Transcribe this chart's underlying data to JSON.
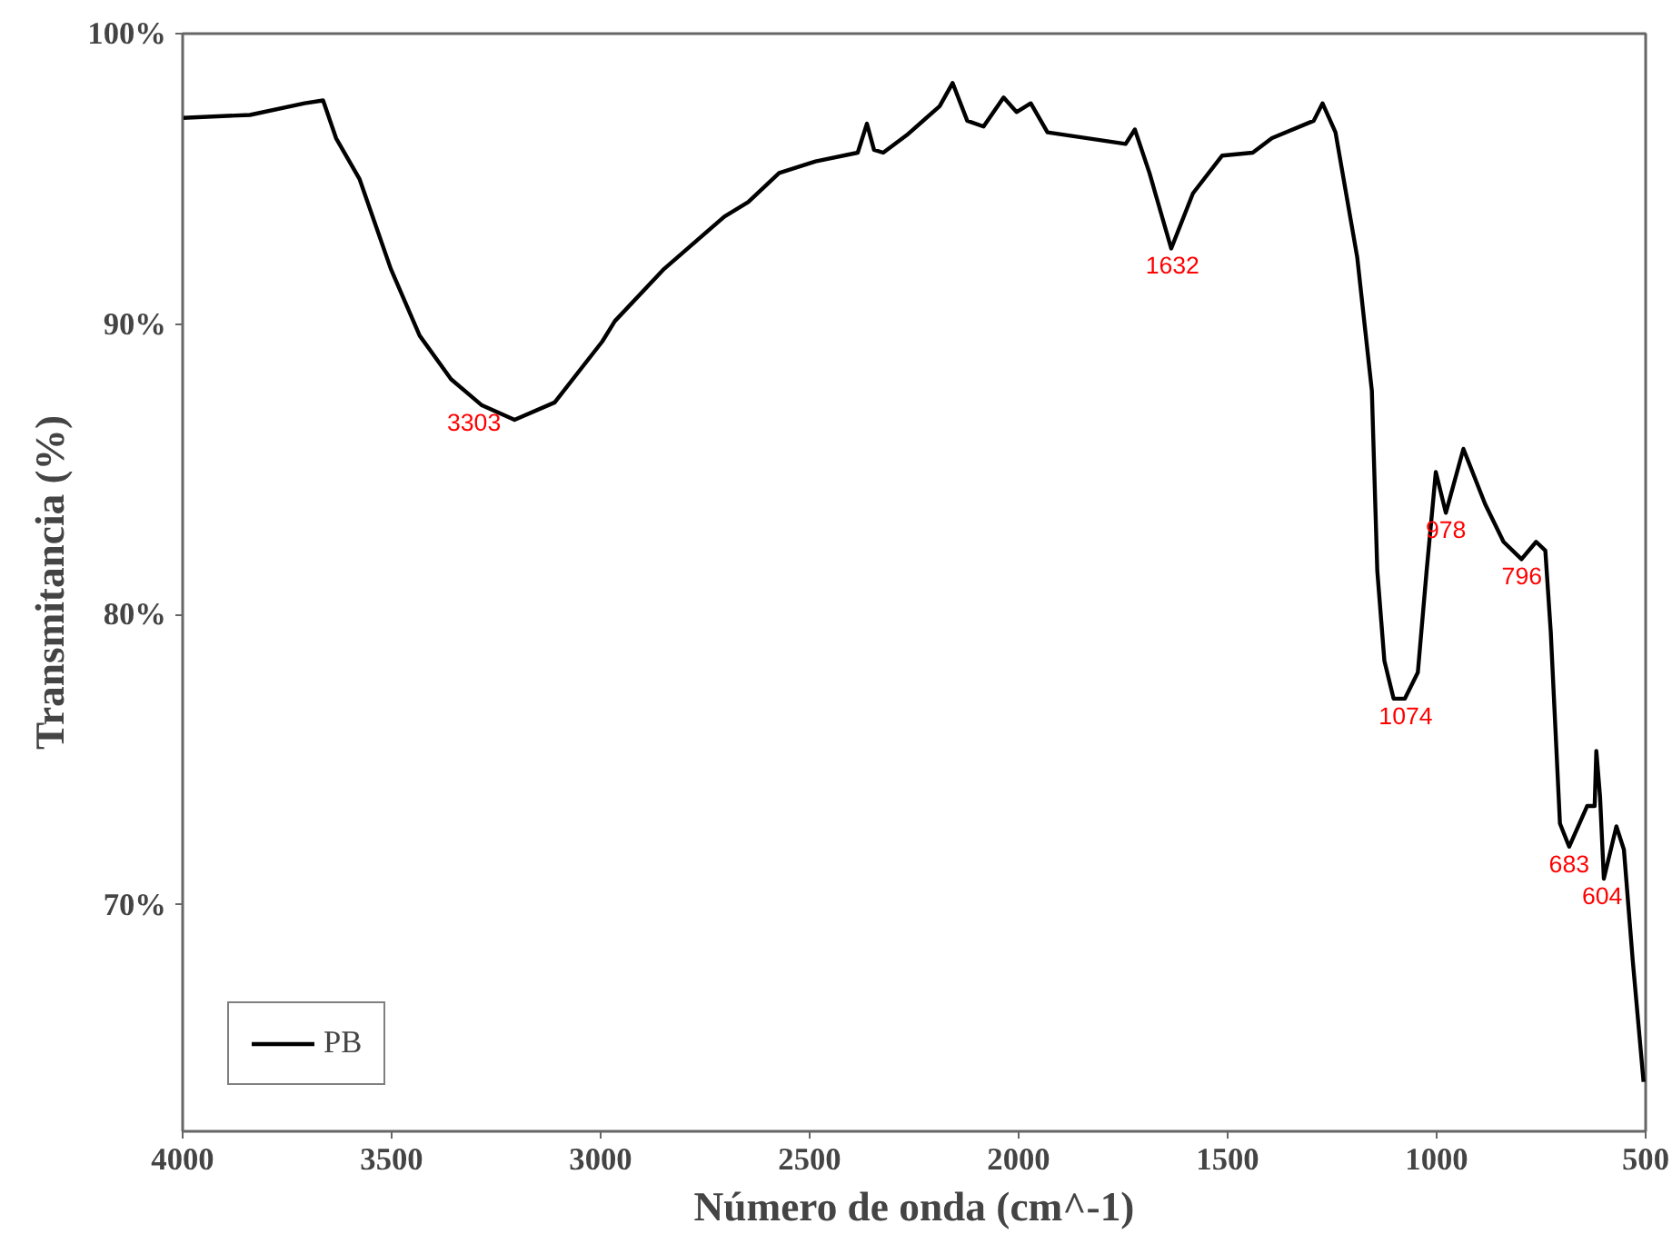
{
  "chart_data": {
    "type": "line",
    "xlabel": "Número de onda (cm^-1)",
    "ylabel": "Transmitancia (%)",
    "x": [
      4000,
      3839,
      3708,
      3664,
      3633,
      3577,
      3502,
      3433,
      3358,
      3284,
      3206,
      3110,
      2996,
      2966,
      2848,
      2704,
      2647,
      2573,
      2486,
      2385,
      2363,
      2346,
      2324,
      2268,
      2189,
      2158,
      2123,
      2084,
      2036,
      2005,
      1971,
      1931,
      1744,
      1722,
      1687,
      1635,
      1583,
      1513,
      1440,
      1394,
      1294,
      1273,
      1242,
      1190,
      1155,
      1142,
      1125,
      1103,
      1076,
      1045,
      1024,
      1002,
      978,
      936,
      884,
      840,
      797,
      762,
      740,
      727,
      705,
      683,
      640,
      622,
      618,
      609,
      600,
      570,
      552,
      531,
      505
    ],
    "series": [
      {
        "name": "PB",
        "color": "#000000",
        "values": [
          97.1,
          97.2,
          97.6,
          97.7,
          96.4,
          95.0,
          91.9,
          89.6,
          88.1,
          87.2,
          86.7,
          87.3,
          89.4,
          90.1,
          91.9,
          93.7,
          94.2,
          95.2,
          95.6,
          95.9,
          96.9,
          96.0,
          95.9,
          96.5,
          97.5,
          98.3,
          97.0,
          96.8,
          97.8,
          97.3,
          97.6,
          96.6,
          96.2,
          96.7,
          95.2,
          92.6,
          94.5,
          95.8,
          95.9,
          96.4,
          97.0,
          97.6,
          96.6,
          92.3,
          87.7,
          81.5,
          78.4,
          77.1,
          77.1,
          78.0,
          81.5,
          84.9,
          83.5,
          85.7,
          83.8,
          82.5,
          81.9,
          82.5,
          82.2,
          79.4,
          72.8,
          72.0,
          73.4,
          73.4,
          75.3,
          73.7,
          70.9,
          72.7,
          71.9,
          68.1,
          63.9
        ]
      }
    ],
    "xlim": [
      4000,
      500
    ],
    "ylim": [
      62.2,
      100
    ],
    "xticks": [
      4000,
      3500,
      3000,
      2500,
      2000,
      1500,
      1000,
      500
    ],
    "yticks": [
      {
        "value": 70,
        "label": "70%"
      },
      {
        "value": 80,
        "label": "80%"
      },
      {
        "value": 90,
        "label": "90%"
      },
      {
        "value": 100,
        "label": "100%"
      }
    ],
    "annotations": [
      {
        "text": "3303",
        "x": 3303,
        "y": 87.2
      },
      {
        "text": "1632",
        "x": 1632,
        "y": 92.6
      },
      {
        "text": "1074",
        "x": 1074,
        "y": 77.1
      },
      {
        "text": "978",
        "x": 978,
        "y": 83.5
      },
      {
        "text": "796",
        "x": 796,
        "y": 81.9
      },
      {
        "text": "683",
        "x": 683,
        "y": 72.0
      },
      {
        "text": "604",
        "x": 604,
        "y": 70.9
      }
    ],
    "grid": false,
    "legend": "bottom left",
    "marker": "none",
    "line_style": "solid"
  }
}
